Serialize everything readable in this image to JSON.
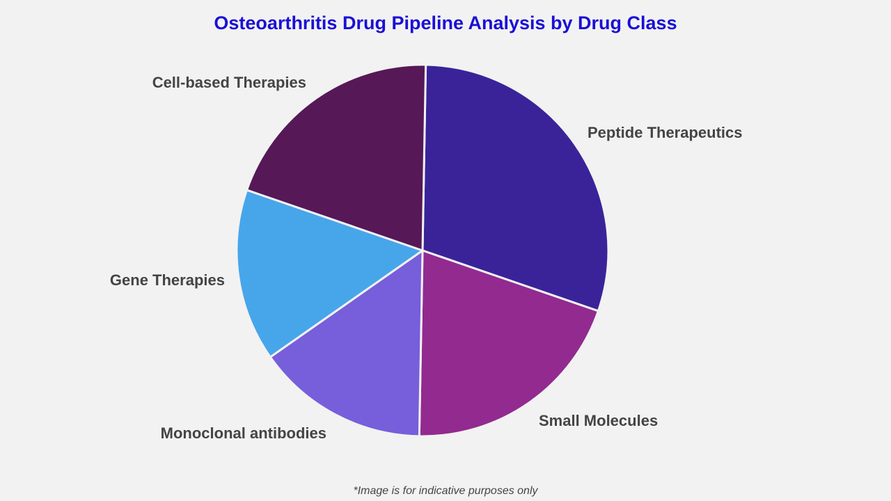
{
  "chart_data": {
    "type": "pie",
    "title": "Osteoarthritis Drug Pipeline Analysis by Drug Class",
    "footnote": "*Image is for indicative purposes only",
    "categories": [
      "Peptide Therapeutics",
      "Small Molecules",
      "Monoclonal antibodies",
      "Gene Therapies",
      "Cell-based Therapies"
    ],
    "values": [
      30,
      20,
      15,
      15,
      20
    ],
    "colors": [
      "#3a2399",
      "#922a8f",
      "#775edb",
      "#47a6ea",
      "#561857"
    ],
    "legend": "none; labels outside slices"
  }
}
